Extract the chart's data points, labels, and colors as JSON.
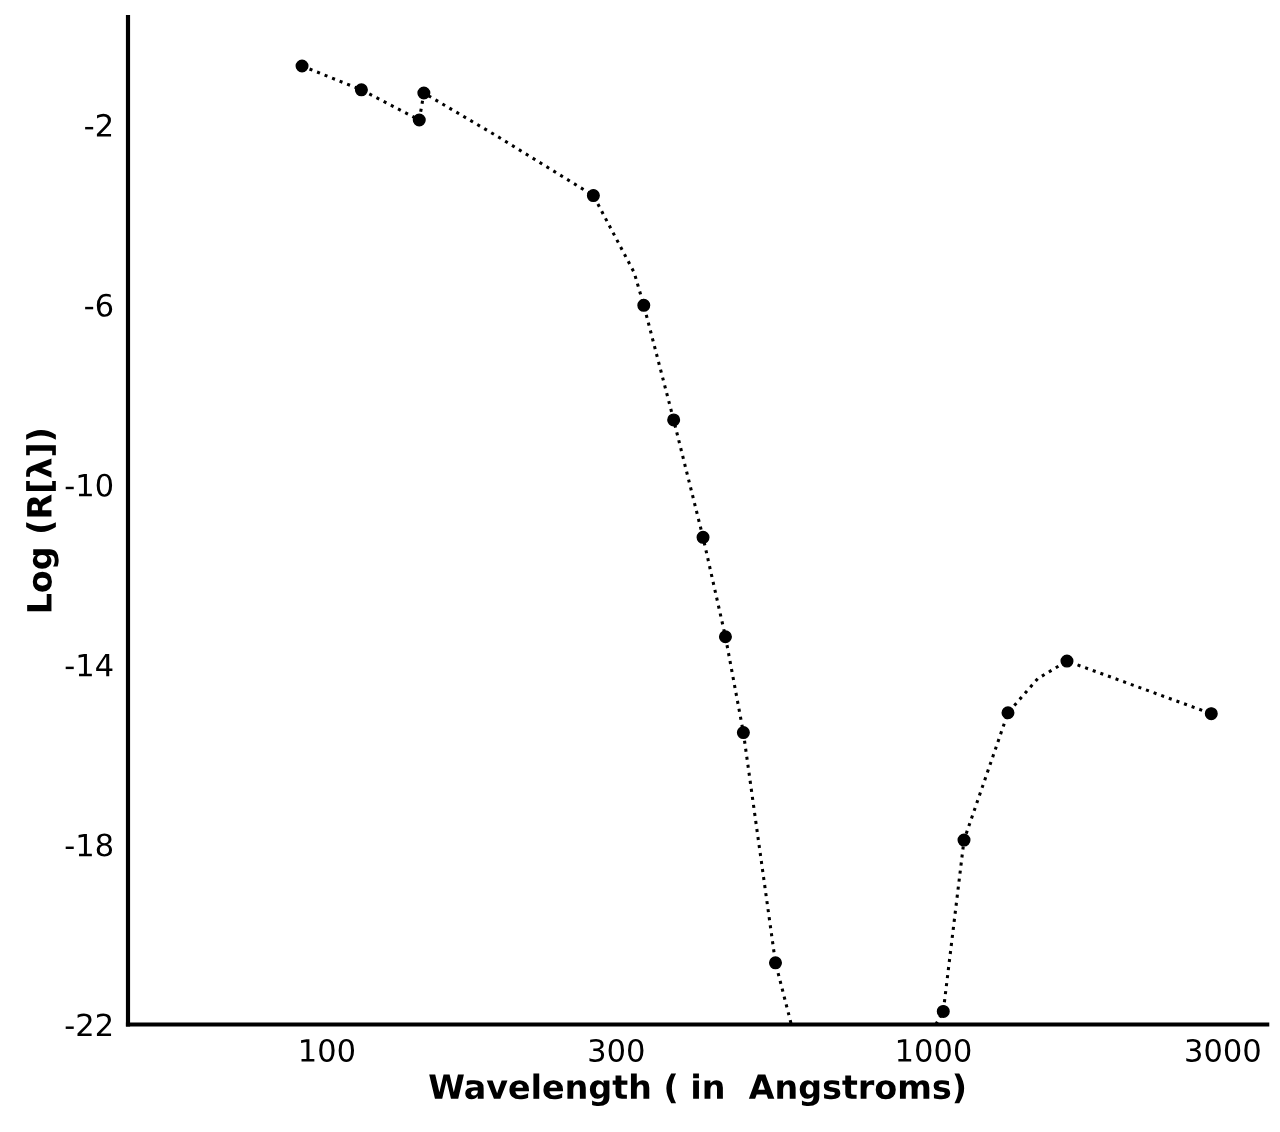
{
  "chart_data": {
    "type": "scatter",
    "xlabel": "Wavelength ( in  Angstroms)",
    "ylabel": "Log (R[λ])",
    "log": "x",
    "xlim": [
      47,
      3550
    ],
    "ylim": [
      -22,
      0.4
    ],
    "xticks": [
      100,
      300,
      1000,
      3000
    ],
    "yticks": [
      -2,
      -6,
      -10,
      -14,
      -18,
      -22
    ],
    "grid": false,
    "marker": "circle",
    "series": [
      {
        "color": "#000000",
        "x": [
          91,
          114,
          142,
          144.5,
          275,
          333,
          373,
          417,
          454,
          486,
          549,
          1038,
          1123,
          1327,
          1660,
          2871
        ],
        "values": [
          -0.69,
          -1.22,
          -1.89,
          -1.29,
          -3.57,
          -6.01,
          -8.56,
          -11.17,
          -13.38,
          -15.51,
          -20.63,
          -21.71,
          -17.9,
          -15.07,
          -13.92,
          -15.09
        ]
      },
      {
        "type": "line",
        "line_style": "dotted",
        "marker": "none",
        "color": "#000000",
        "x": [
          91,
          114,
          142,
          144.5,
          193,
          275,
          321,
          333,
          373,
          417,
          454,
          486,
          549,
          583
        ],
        "values": [
          -0.69,
          -1.22,
          -1.89,
          -1.29,
          -2.29,
          -3.57,
          -5.28,
          -6.01,
          -8.56,
          -11.17,
          -13.38,
          -15.51,
          -20.63,
          -22
        ]
      },
      {
        "type": "line",
        "line_style": "dotted",
        "marker": "none",
        "color": "#000000",
        "x": [
          1009,
          1038,
          1123,
          1327,
          1486,
          1660,
          2871
        ],
        "values": [
          -22,
          -21.71,
          -17.9,
          -15.07,
          -14.31,
          -13.92,
          -15.09
        ]
      }
    ]
  }
}
